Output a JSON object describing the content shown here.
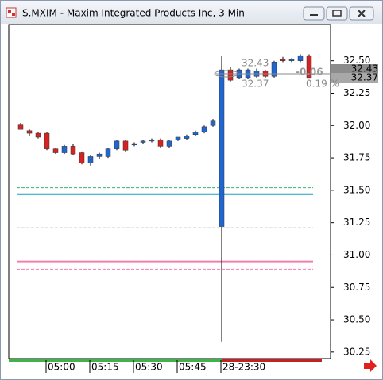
{
  "window": {
    "title": "S.MXIM - Maxim Integrated Products Inc, 3 Min"
  },
  "chart_data": {
    "type": "candlestick",
    "categories": [
      null,
      null,
      null,
      "05:00",
      null,
      null,
      null,
      null,
      "05:15",
      null,
      null,
      null,
      null,
      "05:30",
      null,
      null,
      null,
      null,
      "05:45",
      null,
      null,
      null,
      null,
      "28-23:30",
      null,
      null,
      null,
      null,
      null,
      null,
      null,
      null,
      null,
      null
    ],
    "open": [
      32.01,
      31.96,
      31.94,
      31.94,
      31.82,
      31.79,
      31.84,
      31.79,
      31.71,
      31.76,
      31.76,
      31.82,
      31.88,
      31.85,
      31.87,
      31.88,
      31.89,
      31.84,
      31.89,
      31.9,
      31.93,
      31.95,
      32.0,
      31.22,
      32.43,
      32.37,
      32.37,
      32.38,
      32.42,
      32.38,
      32.51,
      32.5,
      32.5,
      32.54
    ],
    "high": [
      32.02,
      31.97,
      31.95,
      31.95,
      31.83,
      31.85,
      31.86,
      31.8,
      31.77,
      31.79,
      31.83,
      31.89,
      31.89,
      31.87,
      31.89,
      31.9,
      31.9,
      31.89,
      31.91,
      31.93,
      31.96,
      32.0,
      32.05,
      32.54,
      32.45,
      32.44,
      32.44,
      32.44,
      32.43,
      32.5,
      32.53,
      32.52,
      32.55,
      32.55
    ],
    "low": [
      31.97,
      31.92,
      31.9,
      31.81,
      31.78,
      31.78,
      31.77,
      31.7,
      31.69,
      31.74,
      31.75,
      31.81,
      31.8,
      31.84,
      31.86,
      31.87,
      31.83,
      31.83,
      31.88,
      31.89,
      31.92,
      31.94,
      31.99,
      30.33,
      32.34,
      32.36,
      32.36,
      32.37,
      32.37,
      32.37,
      32.49,
      32.49,
      32.49,
      32.37
    ],
    "close": [
      31.97,
      31.94,
      31.91,
      31.82,
      31.79,
      31.84,
      31.78,
      31.71,
      31.76,
      31.78,
      31.82,
      31.88,
      31.81,
      31.86,
      31.88,
      31.89,
      31.84,
      31.88,
      31.91,
      31.92,
      31.95,
      31.99,
      32.04,
      32.43,
      32.35,
      32.43,
      32.43,
      32.42,
      32.38,
      32.49,
      32.5,
      32.51,
      32.54,
      32.37
    ],
    "up_color": "#1f66d0",
    "down_color": "#d62222",
    "levels": [
      {
        "value": 31.52,
        "color": "#3cb371",
        "style": "dashed"
      },
      {
        "value": 31.47,
        "color": "#1aa0c8",
        "style": "solid"
      },
      {
        "value": 31.41,
        "color": "#3cb371",
        "style": "dashed"
      },
      {
        "value": 31.21,
        "color": "#999999",
        "style": "dashed"
      },
      {
        "value": 31.0,
        "color": "#f080b0",
        "style": "dashed"
      },
      {
        "value": 30.95,
        "color": "#f080b0",
        "style": "solid"
      },
      {
        "value": 30.89,
        "color": "#f080b0",
        "style": "dashed"
      }
    ],
    "ylim": [
      30.2,
      32.78
    ],
    "yticks": [
      {
        "value": 30.25,
        "label": "30.25"
      },
      {
        "value": 30.5,
        "label": "30.50"
      },
      {
        "value": 30.75,
        "label": "30.75"
      },
      {
        "value": 31,
        "label": "31.00"
      },
      {
        "value": 31.25,
        "label": "31.25"
      },
      {
        "value": 31.5,
        "label": "31.50"
      },
      {
        "value": 31.75,
        "label": "31.75"
      },
      {
        "value": 32,
        "label": "32.00"
      },
      {
        "value": 32.25,
        "label": "32.25"
      },
      {
        "value": 32.5,
        "label": "32.50"
      }
    ],
    "price_labels": [
      "32.43",
      "32.37"
    ],
    "annotations": {
      "high": "32.43",
      "low": "32.37",
      "change": "-0.06",
      "percent": "0.19 %"
    }
  }
}
